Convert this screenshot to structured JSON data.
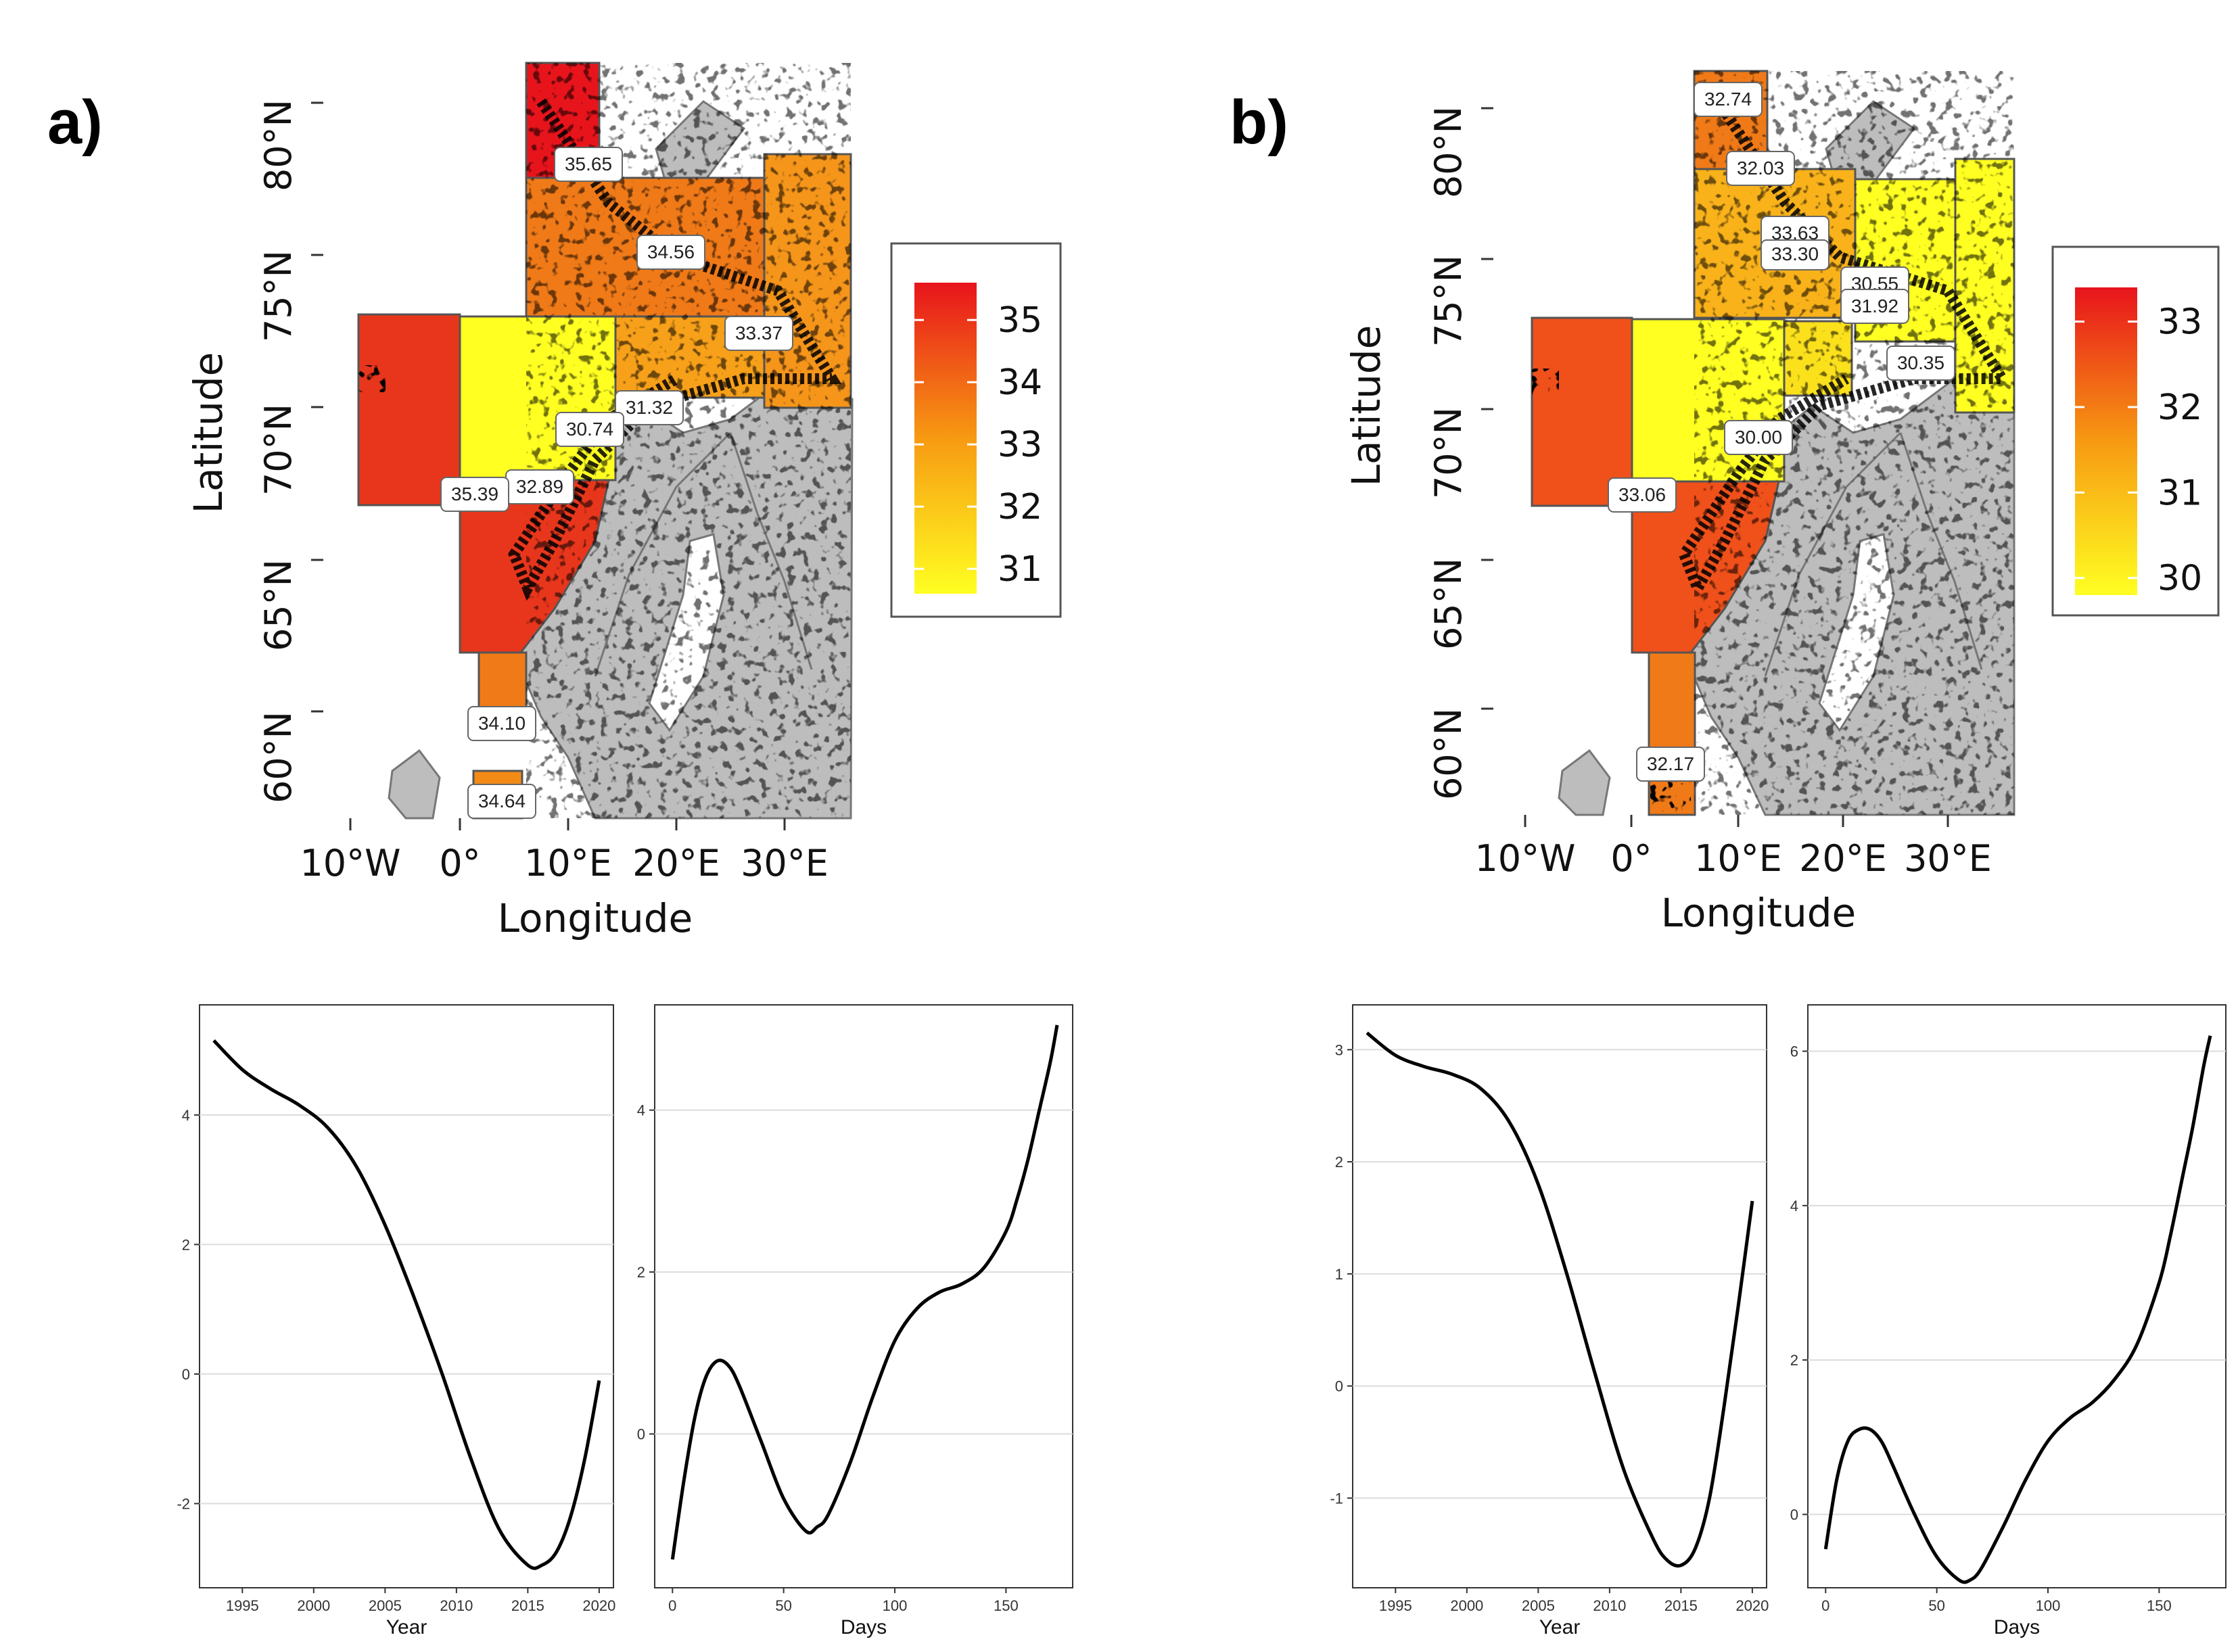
{
  "panels": [
    {
      "letter": "a)",
      "map": {
        "xlabel": "Longitude",
        "ylabel": "Latitude",
        "lon_ticks": [
          "10°W",
          "0°",
          "10°E",
          "20°E",
          "30°E"
        ],
        "lat_ticks": [
          "60°N",
          "65°N",
          "70°N",
          "75°N",
          "80°N"
        ],
        "legend": {
          "ticks": [
            "35",
            "34",
            "33",
            "32",
            "31"
          ],
          "min": 30.6,
          "max": 35.6
        },
        "region_labels": [
          "35.65",
          "34.56",
          "33.37",
          "31.32",
          "30.74",
          "32.89",
          "35.39",
          "34.10",
          "34.64"
        ]
      }
    },
    {
      "letter": "b)",
      "map": {
        "xlabel": "Longitude",
        "ylabel": "Latitude",
        "lon_ticks": [
          "10°W",
          "0°",
          "10°E",
          "20°E",
          "30°E"
        ],
        "lat_ticks": [
          "60°N",
          "65°N",
          "70°N",
          "75°N",
          "80°N"
        ],
        "legend": {
          "ticks": [
            "33",
            "32",
            "31",
            "30"
          ],
          "min": 29.8,
          "max": 33.4
        },
        "region_labels": [
          "32.74",
          "32.03",
          "33.63",
          "33.30",
          "30.55",
          "31.92",
          "30.35",
          "30.00",
          "33.06",
          "32.17"
        ]
      }
    }
  ],
  "chart_data": [
    {
      "type": "line",
      "xlabel": "Year",
      "ylabel": "",
      "xlim": [
        1992,
        2021
      ],
      "ylim": [
        -3.3,
        5.7
      ],
      "xticks": [
        1995,
        2000,
        2005,
        2010,
        2015,
        2020
      ],
      "yticks": [
        -2,
        0,
        2,
        4
      ],
      "x": [
        1993,
        1995,
        1997,
        1999,
        2001,
        2003,
        2005,
        2007,
        2009,
        2011,
        2013,
        2015,
        2016,
        2017,
        2018,
        2019,
        2020
      ],
      "y": [
        5.15,
        4.7,
        4.4,
        4.15,
        3.8,
        3.2,
        2.3,
        1.2,
        0.0,
        -1.3,
        -2.4,
        -2.95,
        -2.95,
        -2.75,
        -2.2,
        -1.3,
        -0.1
      ]
    },
    {
      "type": "line",
      "xlabel": "Days",
      "ylabel": "",
      "xlim": [
        -8,
        180
      ],
      "ylim": [
        -1.9,
        5.3
      ],
      "xticks": [
        0,
        50,
        100,
        150
      ],
      "yticks": [
        0,
        2,
        4
      ],
      "x": [
        0,
        5,
        10,
        15,
        20,
        25,
        30,
        40,
        50,
        60,
        65,
        70,
        80,
        90,
        100,
        110,
        120,
        130,
        140,
        150,
        155,
        160,
        165,
        170,
        173
      ],
      "y": [
        -1.55,
        -0.6,
        0.2,
        0.7,
        0.9,
        0.85,
        0.6,
        -0.1,
        -0.8,
        -1.2,
        -1.15,
        -1.0,
        -0.35,
        0.45,
        1.15,
        1.55,
        1.75,
        1.85,
        2.05,
        2.5,
        2.9,
        3.4,
        4.0,
        4.6,
        5.05
      ]
    },
    {
      "type": "line",
      "xlabel": "Year",
      "ylabel": "",
      "xlim": [
        1992,
        2021
      ],
      "ylim": [
        -1.8,
        3.4
      ],
      "xticks": [
        1995,
        2000,
        2005,
        2010,
        2015,
        2020
      ],
      "yticks": [
        -1,
        0,
        1,
        2,
        3
      ],
      "x": [
        1993,
        1995,
        1997,
        1999,
        2001,
        2003,
        2005,
        2007,
        2009,
        2011,
        2013,
        2014,
        2015,
        2016,
        2017,
        2018,
        2019,
        2020
      ],
      "y": [
        3.15,
        2.95,
        2.85,
        2.78,
        2.65,
        2.35,
        1.8,
        1.0,
        0.1,
        -0.75,
        -1.35,
        -1.55,
        -1.6,
        -1.45,
        -1.0,
        -0.2,
        0.7,
        1.65
      ]
    },
    {
      "type": "line",
      "xlabel": "Days",
      "ylabel": "",
      "xlim": [
        -8,
        180
      ],
      "ylim": [
        -0.95,
        6.6
      ],
      "xticks": [
        0,
        50,
        100,
        150
      ],
      "yticks": [
        0,
        2,
        4,
        6
      ],
      "x": [
        0,
        5,
        10,
        15,
        20,
        25,
        30,
        40,
        50,
        60,
        65,
        70,
        80,
        90,
        100,
        110,
        120,
        130,
        140,
        150,
        155,
        160,
        165,
        170,
        173
      ],
      "y": [
        -0.45,
        0.45,
        0.95,
        1.1,
        1.1,
        0.95,
        0.65,
        0.0,
        -0.55,
        -0.85,
        -0.85,
        -0.7,
        -0.15,
        0.45,
        0.95,
        1.25,
        1.45,
        1.75,
        2.2,
        3.0,
        3.6,
        4.3,
        5.0,
        5.8,
        6.2
      ]
    }
  ]
}
